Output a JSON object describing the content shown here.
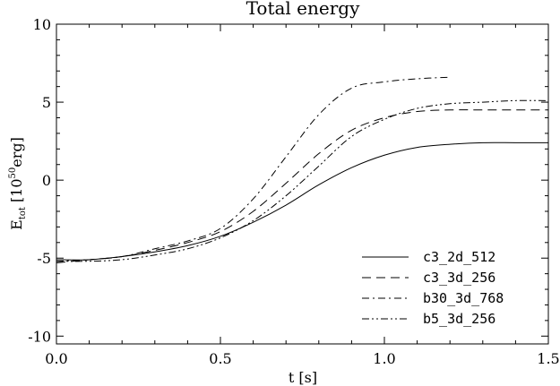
{
  "chart_data": {
    "type": "line",
    "title": "Total energy",
    "xlabel": "t [s]",
    "ylabel": {
      "base": "E",
      "sub": "tot",
      "pre": " [10",
      "sup": "50",
      "post": "erg]"
    },
    "xlim": [
      0.0,
      1.5
    ],
    "ylim": [
      -10.5,
      10
    ],
    "x_ticks": [
      0.0,
      0.5,
      1.0,
      1.5
    ],
    "x_tick_labels": [
      "0.0",
      "0.5",
      "1.0",
      "1.5"
    ],
    "y_ticks": [
      -10,
      -5,
      0,
      5,
      10
    ],
    "y_tick_labels": [
      "-10",
      "-5",
      "0",
      "5",
      "10"
    ],
    "grid": false,
    "legend": "lower-right",
    "series": [
      {
        "name": "c3_2d_512",
        "dash": "solid",
        "x": [
          0.0,
          0.1,
          0.2,
          0.3,
          0.4,
          0.5,
          0.6,
          0.7,
          0.8,
          0.9,
          1.0,
          1.1,
          1.2,
          1.3,
          1.4,
          1.5
        ],
        "y": [
          -5.1,
          -5.1,
          -4.9,
          -4.6,
          -4.2,
          -3.6,
          -2.7,
          -1.6,
          -0.3,
          0.8,
          1.6,
          2.1,
          2.3,
          2.4,
          2.4,
          2.4
        ]
      },
      {
        "name": "c3_3d_256",
        "dash": "dashed",
        "x": [
          0.0,
          0.1,
          0.2,
          0.3,
          0.4,
          0.5,
          0.6,
          0.7,
          0.8,
          0.9,
          1.0,
          1.1,
          1.2,
          1.3,
          1.4,
          1.5
        ],
        "y": [
          -5.3,
          -5.1,
          -4.9,
          -4.5,
          -4.0,
          -3.3,
          -2.0,
          -0.2,
          1.7,
          3.2,
          4.0,
          4.4,
          4.5,
          4.5,
          4.5,
          4.5
        ]
      },
      {
        "name": "b30_3d_768",
        "dash": "dashdot",
        "x": [
          0.0,
          0.1,
          0.2,
          0.3,
          0.4,
          0.5,
          0.6,
          0.7,
          0.8,
          0.9,
          1.0,
          1.1,
          1.2
        ],
        "y": [
          -5.2,
          -5.1,
          -4.9,
          -4.4,
          -3.9,
          -3.1,
          -1.2,
          1.5,
          4.2,
          5.9,
          6.3,
          6.5,
          6.6
        ]
      },
      {
        "name": "b5_3d_256",
        "dash": "dashdotdot",
        "x": [
          0.0,
          0.1,
          0.2,
          0.3,
          0.4,
          0.5,
          0.6,
          0.7,
          0.8,
          0.9,
          1.0,
          1.1,
          1.2,
          1.3,
          1.4,
          1.5
        ],
        "y": [
          -5.2,
          -5.2,
          -5.1,
          -4.8,
          -4.4,
          -3.7,
          -2.6,
          -1.0,
          0.9,
          2.8,
          3.9,
          4.6,
          4.9,
          5.0,
          5.1,
          5.1
        ]
      }
    ]
  }
}
